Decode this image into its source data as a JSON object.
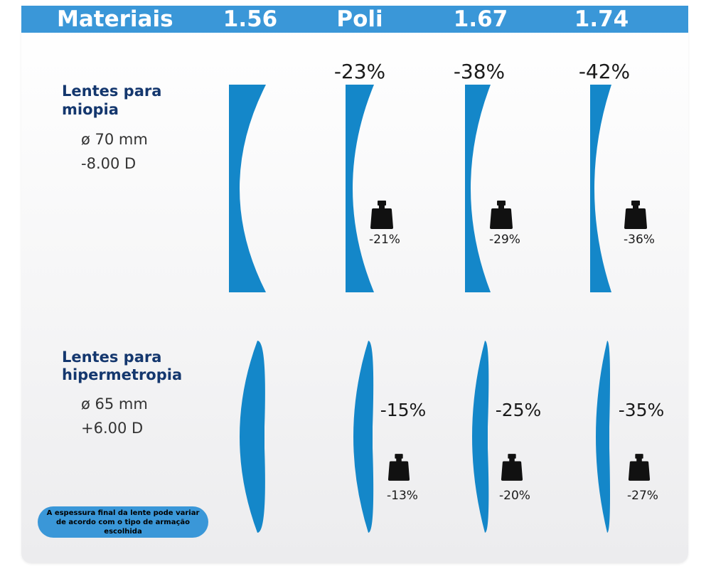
{
  "header": {
    "materials_label": "Materiais",
    "columns": [
      "1.56",
      "Poli",
      "1.67",
      "1.74"
    ]
  },
  "miopia": {
    "title_line1": "Lentes para",
    "title_line2": "miopia",
    "diameter": "ø 70 mm",
    "power": "-8.00 D",
    "thickness_reduction": [
      "-23%",
      "-38%",
      "-42%"
    ],
    "weight_reduction": [
      "-21%",
      "-29%",
      "-36%"
    ]
  },
  "hipermetropia": {
    "title_line1": "Lentes para",
    "title_line2": "hipermetropia",
    "diameter": "ø 65 mm",
    "power": "+6.00 D",
    "thickness_reduction": [
      "-15%",
      "-25%",
      "-35%"
    ],
    "weight_reduction": [
      "-13%",
      "-20%",
      "-27%"
    ]
  },
  "note": "A espessura final da lente pode variar de acordo com o tipo de armação escolhida",
  "colors": {
    "header": "#3a97d8",
    "lens": "#1487c9",
    "title": "#14376e"
  },
  "icons": {
    "weight": "weight-icon"
  }
}
